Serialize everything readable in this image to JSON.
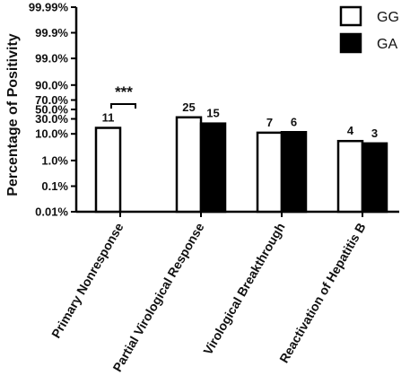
{
  "chart_data": {
    "type": "bar",
    "ylabel": "Percentage of Positivity",
    "yscale": "logit",
    "yticks": [
      "0.01%",
      "0.1%",
      "1.0%",
      "10.0%",
      "30.0%",
      "50.0%",
      "70.0%",
      "90.0%",
      "99.0%",
      "99.9%",
      "99.99%"
    ],
    "ylim": [
      "0.01%",
      "99.99%"
    ],
    "categories": [
      "Primary Nonresponse",
      "Partial Virological Response",
      "Virological Breakthrough",
      "Reactivation of Hepatitis B"
    ],
    "series": [
      {
        "name": "GG",
        "color": "#ffffff",
        "values_percent": [
          16,
          33,
          11,
          5.5
        ],
        "labels": [
          "11",
          "25",
          "7",
          "4"
        ]
      },
      {
        "name": "GA",
        "color": "#000000",
        "values_percent": [
          null,
          22,
          11.5,
          4.5
        ],
        "labels": [
          "",
          "15",
          "6",
          "3"
        ]
      }
    ],
    "significance": {
      "category": "Primary Nonresponse",
      "text": "***"
    },
    "legend_position": "top-right",
    "grid": false
  }
}
